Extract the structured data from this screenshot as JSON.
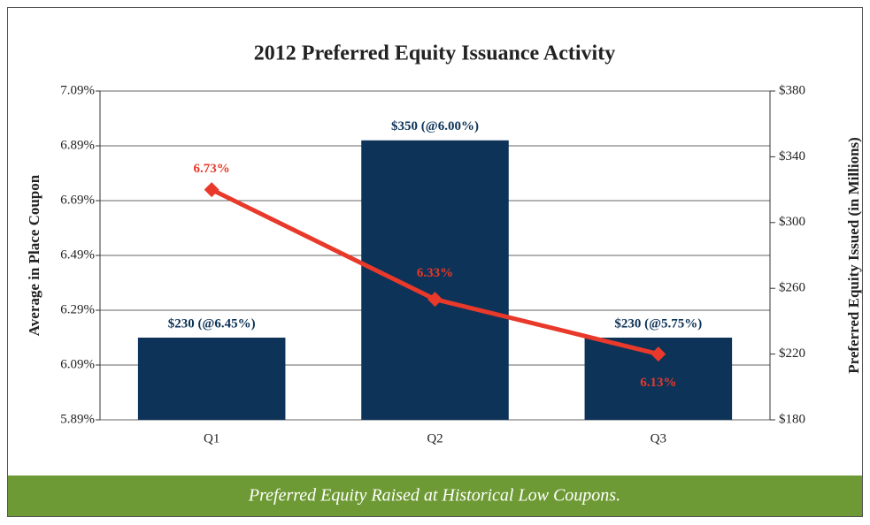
{
  "chart_data": {
    "type": "bar-line",
    "title": "2012 Preferred Equity Issuance Activity",
    "y_label": "Average in Place Coupon",
    "y2_label": "Preferred Equity Issued (in Millions)",
    "caption": "Preferred Equity Raised at Historical Low Coupons.",
    "categories": [
      "Q1",
      "Q2",
      "Q3"
    ],
    "series": [
      {
        "name": "Preferred Equity Issued",
        "type": "bar",
        "axis": "y2",
        "color": "#0d3358",
        "values": [
          230,
          350,
          230
        ],
        "value_labels": [
          "$230 (@6.45%)",
          "$350 (@6.00%)",
          "$230 (@5.75%)"
        ]
      },
      {
        "name": "Average in Place Coupon",
        "type": "line",
        "axis": "y",
        "color": "#e8392a",
        "values": [
          6.73,
          6.33,
          6.13
        ],
        "value_labels": [
          "6.73%",
          "6.33%",
          "6.13%"
        ]
      }
    ],
    "ylim": [
      5.89,
      7.09
    ],
    "yticks": [
      {
        "value": 5.89,
        "label": "5.89%"
      },
      {
        "value": 6.09,
        "label": "6.09%"
      },
      {
        "value": 6.29,
        "label": "6.29%"
      },
      {
        "value": 6.49,
        "label": "6.49%"
      },
      {
        "value": 6.69,
        "label": "6.69%"
      },
      {
        "value": 6.89,
        "label": "6.89%"
      },
      {
        "value": 7.09,
        "label": "7.09%"
      }
    ],
    "y2lim": [
      180,
      380
    ],
    "y2ticks": [
      {
        "value": 180,
        "label": "$180"
      },
      {
        "value": 220,
        "label": "$220"
      },
      {
        "value": 260,
        "label": "$260"
      },
      {
        "value": 300,
        "label": "$300"
      },
      {
        "value": 340,
        "label": "$340"
      },
      {
        "value": 380,
        "label": "$380"
      }
    ],
    "grid": true
  }
}
